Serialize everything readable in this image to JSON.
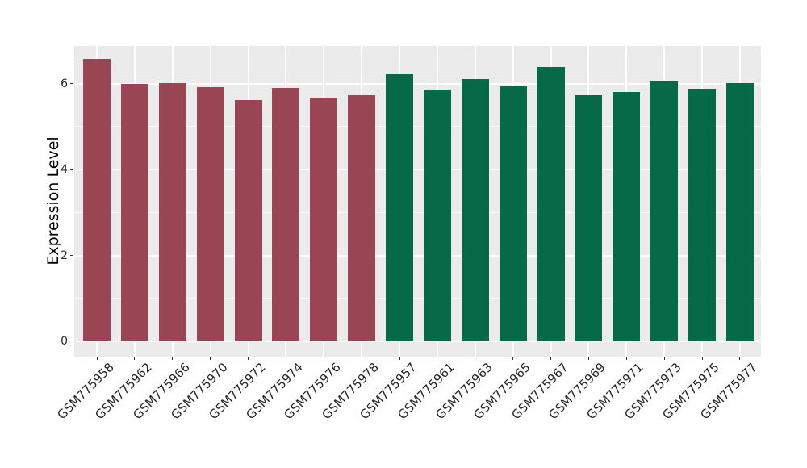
{
  "chart_data": {
    "type": "bar",
    "title": "",
    "xlabel": "",
    "ylabel": "Expression Level",
    "categories": [
      "GSM775958",
      "GSM775962",
      "GSM775966",
      "GSM775970",
      "GSM775972",
      "GSM775974",
      "GSM775976",
      "GSM775978",
      "GSM775957",
      "GSM775961",
      "GSM775963",
      "GSM775965",
      "GSM775967",
      "GSM775969",
      "GSM775971",
      "GSM775973",
      "GSM775975",
      "GSM775977"
    ],
    "values": [
      6.57,
      5.99,
      6.02,
      5.93,
      5.62,
      5.91,
      5.67,
      5.74,
      6.22,
      5.86,
      6.1,
      5.94,
      6.4,
      5.73,
      5.8,
      6.07,
      5.88,
      6.01
    ],
    "groups": [
      "red",
      "red",
      "red",
      "red",
      "red",
      "red",
      "red",
      "red",
      "green",
      "green",
      "green",
      "green",
      "green",
      "green",
      "green",
      "green",
      "green",
      "green"
    ],
    "group_colors": {
      "red": "#9A4553",
      "green": "#066A48"
    },
    "y_ticks": [
      0,
      2,
      4,
      6
    ],
    "y_minor_ticks": [
      1,
      3,
      5
    ],
    "ylim": [
      -0.36,
      6.88
    ],
    "legend": "none",
    "grid": "on",
    "panel_bg": "#EBEBEB",
    "grid_color": "#FFFFFF"
  }
}
